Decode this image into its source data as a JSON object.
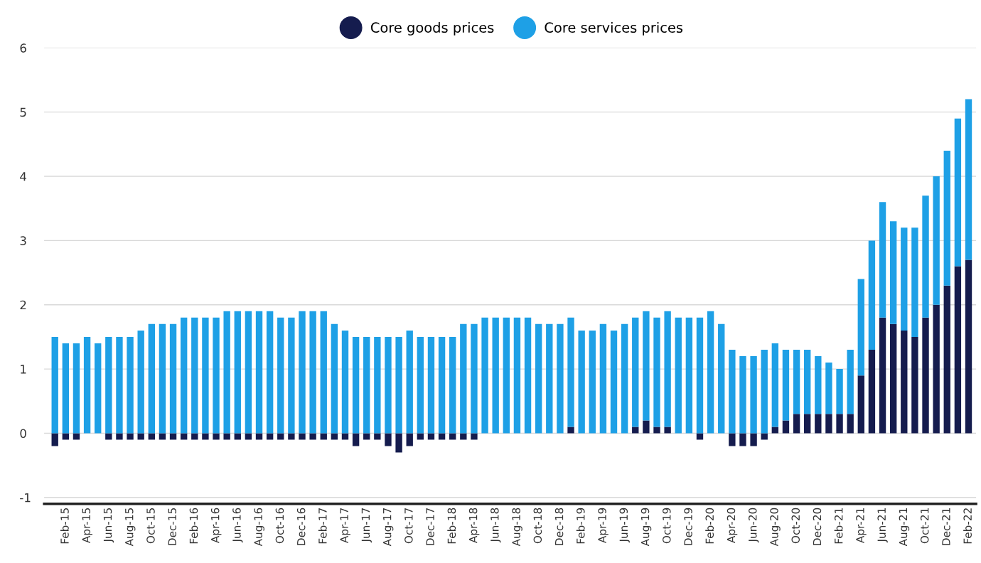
{
  "chart_data": {
    "type": "bar",
    "stacked": true,
    "categories": [
      null,
      "Feb-15",
      null,
      "Apr-15",
      null,
      "Jun-15",
      null,
      "Aug-15",
      null,
      "Oct-15",
      null,
      "Dec-15",
      null,
      "Feb-16",
      null,
      "Apr-16",
      null,
      "Jun-16",
      null,
      "Aug-16",
      null,
      "Oct-16",
      null,
      "Dec-16",
      null,
      "Feb-17",
      null,
      "Apr-17",
      null,
      "Jun-17",
      null,
      "Aug-17",
      null,
      "Oct-17",
      null,
      "Dec-17",
      null,
      "Feb-18",
      null,
      "Apr-18",
      null,
      "Jun-18",
      null,
      "Aug-18",
      null,
      "Oct-18",
      null,
      "Dec-18",
      null,
      "Feb-19",
      null,
      "Apr-19",
      null,
      "Jun-19",
      null,
      "Aug-19",
      null,
      "Oct-19",
      null,
      "Dec-19",
      null,
      "Feb-20",
      null,
      "Apr-20",
      null,
      "Jun-20",
      null,
      "Aug-20",
      null,
      "Oct-20",
      null,
      "Dec-20",
      null,
      "Feb-21",
      null,
      "Apr-21",
      null,
      "Jun-21",
      null,
      "Aug-21",
      null,
      "Oct-21",
      null,
      "Dec-21",
      null,
      "Feb-22"
    ],
    "series": [
      {
        "name": "Core goods prices",
        "color": "#151c4e",
        "values": [
          -0.2,
          -0.1,
          -0.1,
          0,
          0,
          -0.1,
          -0.1,
          -0.1,
          -0.1,
          -0.1,
          -0.1,
          -0.1,
          -0.1,
          -0.1,
          -0.1,
          -0.1,
          -0.1,
          -0.1,
          -0.1,
          -0.1,
          -0.1,
          -0.1,
          -0.1,
          -0.1,
          -0.1,
          -0.1,
          -0.1,
          -0.1,
          -0.2,
          -0.1,
          -0.1,
          -0.2,
          -0.3,
          -0.2,
          -0.1,
          -0.1,
          -0.1,
          -0.1,
          -0.1,
          -0.1,
          0,
          0,
          0,
          0,
          0,
          0,
          0,
          0,
          0.1,
          0,
          0,
          0,
          0,
          0,
          0.1,
          0.2,
          0.1,
          0.1,
          0,
          0,
          -0.1,
          0,
          0,
          -0.2,
          -0.2,
          -0.2,
          -0.1,
          0.1,
          0.2,
          0.3,
          0.3,
          0.3,
          0.3,
          0.3,
          0.3,
          0.9,
          1.3,
          1.8,
          1.7,
          1.6,
          1.5,
          1.8,
          2.0,
          2.3,
          2.6,
          2.7
        ]
      },
      {
        "name": "Core services prices",
        "color": "#1ea0e6",
        "values": [
          1.5,
          1.4,
          1.4,
          1.5,
          1.4,
          1.5,
          1.5,
          1.5,
          1.6,
          1.7,
          1.7,
          1.7,
          1.8,
          1.8,
          1.8,
          1.8,
          1.9,
          1.9,
          1.9,
          1.9,
          1.9,
          1.8,
          1.8,
          1.9,
          1.9,
          1.9,
          1.7,
          1.6,
          1.5,
          1.5,
          1.5,
          1.5,
          1.5,
          1.6,
          1.5,
          1.5,
          1.5,
          1.5,
          1.7,
          1.7,
          1.8,
          1.8,
          1.8,
          1.8,
          1.8,
          1.7,
          1.7,
          1.7,
          1.7,
          1.6,
          1.6,
          1.7,
          1.6,
          1.7,
          1.7,
          1.7,
          1.7,
          1.8,
          1.8,
          1.8,
          1.8,
          1.9,
          1.7,
          1.3,
          1.2,
          1.2,
          1.3,
          1.3,
          1.1,
          1.0,
          1.0,
          0.9,
          0.8,
          0.7,
          1.0,
          1.5,
          1.7,
          1.8,
          1.6,
          1.6,
          1.7,
          1.9,
          2.0,
          2.1,
          2.3,
          2.5
        ]
      }
    ],
    "ylim": [
      -1.1,
      6
    ],
    "yticks": [
      -1,
      0,
      1,
      2,
      3,
      4,
      5,
      6
    ],
    "grid": "y",
    "legend": "top"
  }
}
